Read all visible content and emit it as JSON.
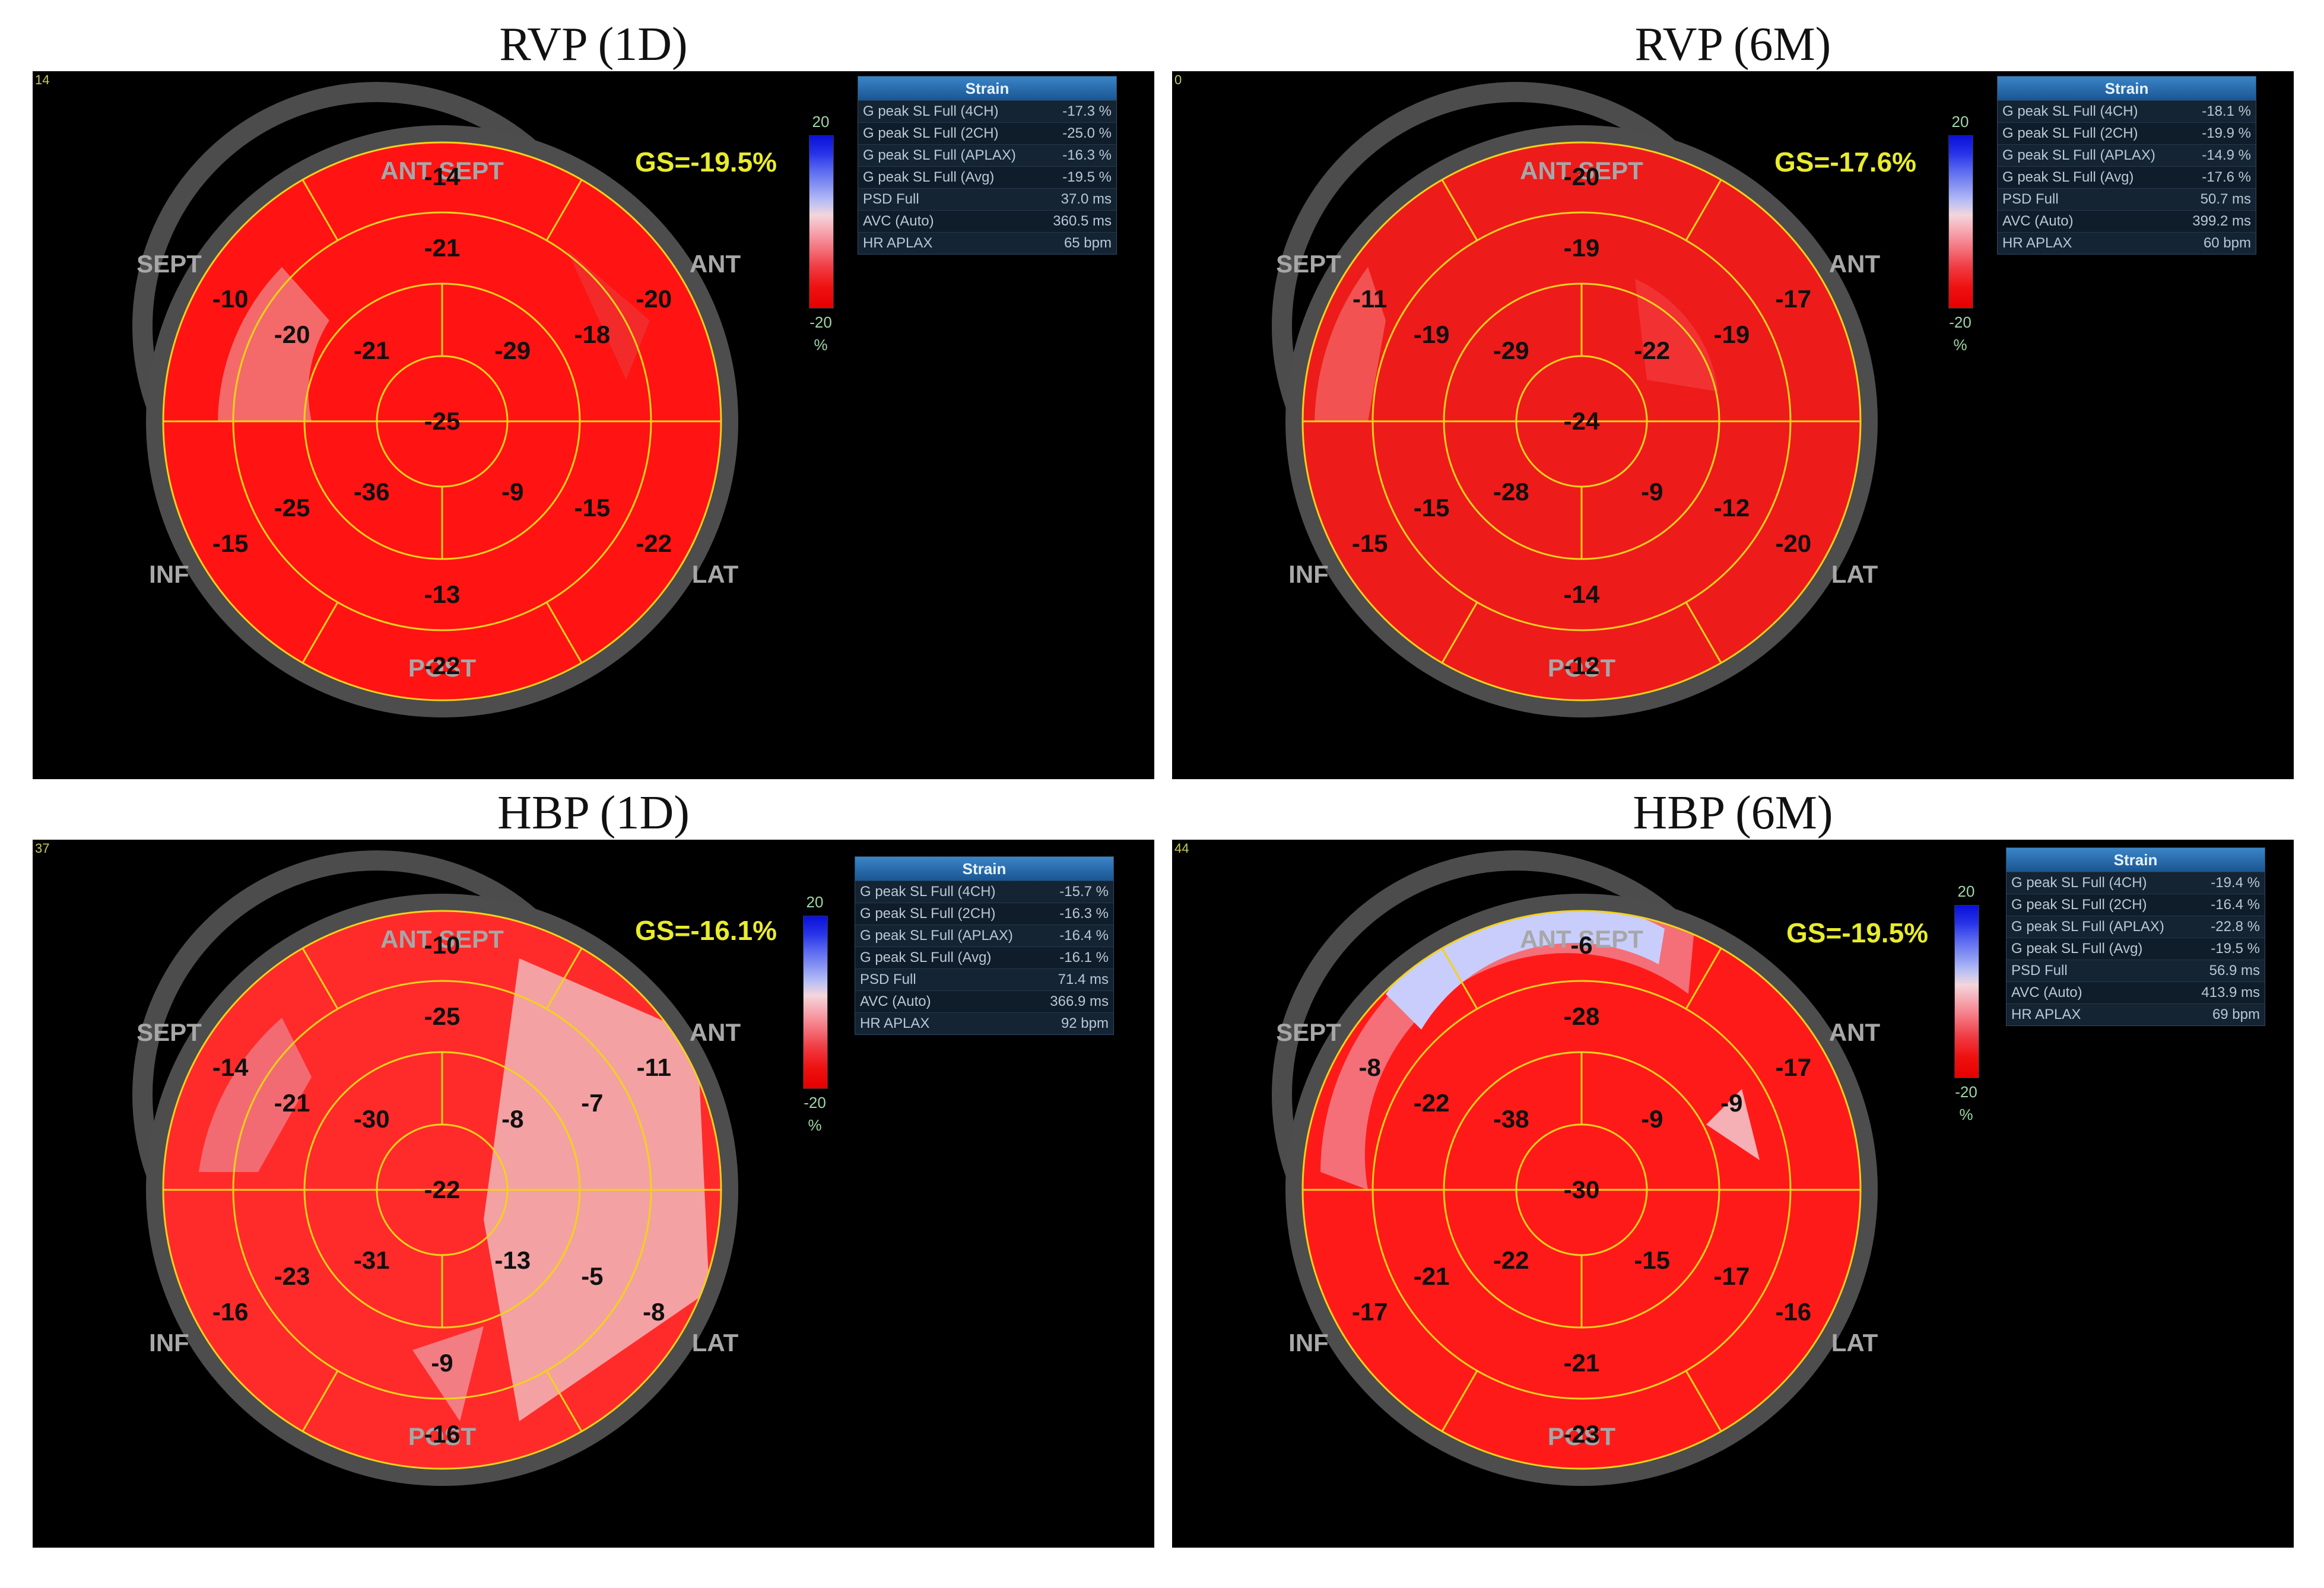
{
  "panels": [
    {
      "title": "RVP (1D)",
      "corner_mark": "14",
      "gs": "GS=-19.5%",
      "regions": {
        "antsept": "ANT SEPT",
        "sept": "SEPT",
        "ant": "ANT",
        "inf": "INF",
        "lat": "LAT",
        "post": "POST"
      },
      "colorbar": {
        "top": "20",
        "bottom": "-20",
        "unit": "%"
      },
      "strain": {
        "title": "Strain",
        "rows": [
          {
            "label": "G peak SL Full (4CH)",
            "value": "-17.3 %"
          },
          {
            "label": "G peak SL Full (2CH)",
            "value": "-25.0 %"
          },
          {
            "label": "G peak SL Full (APLAX)",
            "value": "-16.3 %"
          },
          {
            "label": "G peak SL Full (Avg)",
            "value": "-19.5 %"
          },
          {
            "label": "PSD Full",
            "value": "37.0 ms"
          },
          {
            "label": "AVC (Auto)",
            "value": "360.5 ms"
          },
          {
            "label": "HR APLAX",
            "value": "65 bpm"
          }
        ]
      },
      "segments": {
        "basal": [
          "-14",
          "-20",
          "-22",
          "-22",
          "-15",
          "-10"
        ],
        "mid": [
          "-21",
          "-18",
          "-15",
          "-13",
          "-25",
          "-20"
        ],
        "apical": [
          "-29",
          "-9",
          "-36",
          "-21"
        ],
        "apex": "-25"
      }
    },
    {
      "title": "RVP (6M)",
      "corner_mark": "0",
      "gs": "GS=-17.6%",
      "regions": {
        "antsept": "ANT SEPT",
        "sept": "SEPT",
        "ant": "ANT",
        "inf": "INF",
        "lat": "LAT",
        "post": "POST"
      },
      "colorbar": {
        "top": "20",
        "bottom": "-20",
        "unit": "%"
      },
      "strain": {
        "title": "Strain",
        "rows": [
          {
            "label": "G peak SL Full (4CH)",
            "value": "-18.1 %"
          },
          {
            "label": "G peak SL Full (2CH)",
            "value": "-19.9 %"
          },
          {
            "label": "G peak SL Full (APLAX)",
            "value": "-14.9 %"
          },
          {
            "label": "G peak SL Full (Avg)",
            "value": "-17.6 %"
          },
          {
            "label": "PSD Full",
            "value": "50.7 ms"
          },
          {
            "label": "AVC (Auto)",
            "value": "399.2 ms"
          },
          {
            "label": "HR APLAX",
            "value": "60 bpm"
          }
        ]
      },
      "segments": {
        "basal": [
          "-20",
          "-17",
          "-20",
          "-12",
          "-15",
          "-11"
        ],
        "mid": [
          "-19",
          "-19",
          "-12",
          "-14",
          "-15",
          "-19"
        ],
        "apical": [
          "-22",
          "-9",
          "-28",
          "-29"
        ],
        "apex": "-24"
      }
    },
    {
      "title": "HBP (1D)",
      "corner_mark": "37",
      "gs": "GS=-16.1%",
      "regions": {
        "antsept": "ANT SEPT",
        "sept": "SEPT",
        "ant": "ANT",
        "inf": "INF",
        "lat": "LAT",
        "post": "POST"
      },
      "colorbar": {
        "top": "20",
        "bottom": "-20",
        "unit": "%"
      },
      "strain": {
        "title": "Strain",
        "rows": [
          {
            "label": "G peak SL Full (4CH)",
            "value": "-15.7 %"
          },
          {
            "label": "G peak SL Full (2CH)",
            "value": "-16.3 %"
          },
          {
            "label": "G peak SL Full (APLAX)",
            "value": "-16.4 %"
          },
          {
            "label": "G peak SL Full (Avg)",
            "value": "-16.1 %"
          },
          {
            "label": "PSD Full",
            "value": "71.4 ms"
          },
          {
            "label": "AVC (Auto)",
            "value": "366.9 ms"
          },
          {
            "label": "HR APLAX",
            "value": "92 bpm"
          }
        ]
      },
      "segments": {
        "basal": [
          "-10",
          "-11",
          "-8",
          "-16",
          "-16",
          "-14"
        ],
        "mid": [
          "-25",
          "-7",
          "-5",
          "-9",
          "-23",
          "-21"
        ],
        "apical": [
          "-8",
          "-13",
          "-31",
          "-30"
        ],
        "apex": "-22"
      }
    },
    {
      "title": "HBP (6M)",
      "corner_mark": "44",
      "gs": "GS=-19.5%",
      "regions": {
        "antsept": "ANT SEPT",
        "sept": "SEPT",
        "ant": "ANT",
        "inf": "INF",
        "lat": "LAT",
        "post": "POST"
      },
      "colorbar": {
        "top": "20",
        "bottom": "-20",
        "unit": "%"
      },
      "strain": {
        "title": "Strain",
        "rows": [
          {
            "label": "G peak SL Full (4CH)",
            "value": "-19.4 %"
          },
          {
            "label": "G peak SL Full (2CH)",
            "value": "-16.4 %"
          },
          {
            "label": "G peak SL Full (APLAX)",
            "value": "-22.8 %"
          },
          {
            "label": "G peak SL Full (Avg)",
            "value": "-19.5 %"
          },
          {
            "label": "PSD Full",
            "value": "56.9 ms"
          },
          {
            "label": "AVC (Auto)",
            "value": "413.9 ms"
          },
          {
            "label": "HR APLAX",
            "value": "69 bpm"
          }
        ]
      },
      "segments": {
        "basal": [
          "-6",
          "-17",
          "-16",
          "-23",
          "-17",
          "-8"
        ],
        "mid": [
          "-28",
          "-9",
          "-17",
          "-21",
          "-21",
          "-22"
        ],
        "apical": [
          "-9",
          "-15",
          "-22",
          "-38"
        ],
        "apex": "-30"
      }
    }
  ]
}
